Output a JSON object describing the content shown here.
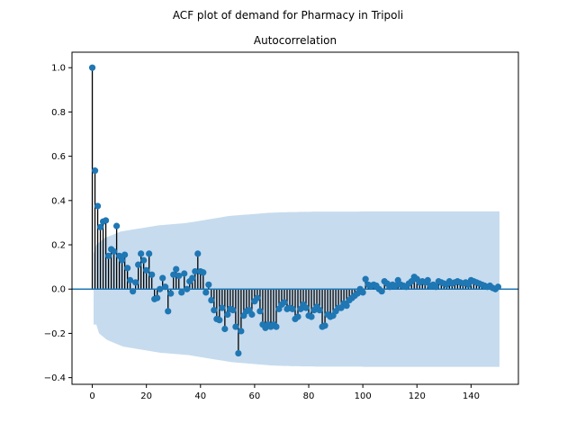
{
  "chart_data": {
    "type": "stem",
    "suptitle": "ACF plot of demand for Pharmacy in Tripoli",
    "title": "Autocorrelation",
    "xlabel": "",
    "ylabel": "",
    "xlim": [
      -7.5,
      157.5
    ],
    "ylim": [
      -0.43,
      1.07
    ],
    "x_ticks": [
      0,
      20,
      40,
      60,
      80,
      100,
      120,
      140
    ],
    "x_tick_labels": [
      "0",
      "20",
      "40",
      "60",
      "80",
      "100",
      "120",
      "140"
    ],
    "y_ticks": [
      -0.4,
      -0.2,
      0.0,
      0.2,
      0.4,
      0.6,
      0.8,
      1.0
    ],
    "y_tick_labels": [
      "−0.4",
      "−0.2",
      "0.0",
      "0.2",
      "0.4",
      "0.6",
      "0.8",
      "1.0"
    ],
    "grid": false,
    "colors": {
      "marker": "#1f77b4",
      "stem": "#000000",
      "band": "#c6dbee",
      "zero_line": "#1f77b4"
    },
    "lags": [
      0,
      1,
      2,
      3,
      4,
      5,
      6,
      7,
      8,
      9,
      10,
      11,
      12,
      13,
      14,
      15,
      16,
      17,
      18,
      19,
      20,
      21,
      22,
      23,
      24,
      25,
      26,
      27,
      28,
      29,
      30,
      31,
      32,
      33,
      34,
      35,
      36,
      37,
      38,
      39,
      40,
      41,
      42,
      43,
      44,
      45,
      46,
      47,
      48,
      49,
      50,
      51,
      52,
      53,
      54,
      55,
      56,
      57,
      58,
      59,
      60,
      61,
      62,
      63,
      64,
      65,
      66,
      67,
      68,
      69,
      70,
      71,
      72,
      73,
      74,
      75,
      76,
      77,
      78,
      79,
      80,
      81,
      82,
      83,
      84,
      85,
      86,
      87,
      88,
      89,
      90,
      91,
      92,
      93,
      94,
      95,
      96,
      97,
      98,
      99,
      100,
      101,
      102,
      103,
      104,
      105,
      106,
      107,
      108,
      109,
      110,
      111,
      112,
      113,
      114,
      115,
      116,
      117,
      118,
      119,
      120,
      121,
      122,
      123,
      124,
      125,
      126,
      127,
      128,
      129,
      130,
      131,
      132,
      133,
      134,
      135,
      136,
      137,
      138,
      139,
      140,
      141,
      142,
      143,
      144,
      145,
      146,
      147,
      148,
      149,
      150
    ],
    "acf": [
      1.0,
      0.535,
      0.375,
      0.28,
      0.305,
      0.31,
      0.15,
      0.18,
      0.17,
      0.285,
      0.15,
      0.13,
      0.155,
      0.095,
      0.04,
      -0.01,
      0.03,
      0.11,
      0.16,
      0.13,
      0.085,
      0.16,
      0.065,
      -0.045,
      -0.04,
      0.0,
      0.05,
      0.01,
      -0.1,
      -0.02,
      0.065,
      0.09,
      0.06,
      -0.015,
      0.07,
      0.0,
      0.035,
      0.05,
      0.08,
      0.16,
      0.08,
      0.075,
      -0.015,
      0.02,
      -0.05,
      -0.095,
      -0.135,
      -0.14,
      -0.085,
      -0.18,
      -0.115,
      -0.09,
      -0.095,
      -0.17,
      -0.29,
      -0.19,
      -0.12,
      -0.1,
      -0.095,
      -0.115,
      -0.055,
      -0.04,
      -0.1,
      -0.16,
      -0.175,
      -0.16,
      -0.17,
      -0.16,
      -0.17,
      -0.09,
      -0.07,
      -0.06,
      -0.09,
      -0.085,
      -0.09,
      -0.135,
      -0.125,
      -0.09,
      -0.07,
      -0.085,
      -0.12,
      -0.125,
      -0.095,
      -0.08,
      -0.095,
      -0.17,
      -0.165,
      -0.115,
      -0.125,
      -0.12,
      -0.1,
      -0.085,
      -0.085,
      -0.065,
      -0.075,
      -0.05,
      -0.04,
      -0.03,
      -0.02,
      0.0,
      -0.015,
      0.045,
      0.02,
      0.015,
      0.02,
      0.015,
      0.0,
      -0.01,
      0.035,
      0.025,
      0.01,
      0.02,
      0.015,
      0.04,
      0.02,
      0.015,
      0.01,
      0.025,
      0.035,
      0.055,
      0.045,
      0.03,
      0.035,
      0.03,
      0.04,
      0.015,
      0.02,
      0.01,
      0.035,
      0.03,
      0.025,
      0.02,
      0.035,
      0.025,
      0.03,
      0.035,
      0.03,
      0.025,
      0.03,
      0.02,
      0.04,
      0.035,
      0.03,
      0.025,
      0.02,
      0.015,
      0.01,
      0.015,
      0.005,
      0.0,
      0.01
    ],
    "confint_half_width": [
      0.0,
      0.16,
      0.2,
      0.21,
      0.22,
      0.23,
      0.235,
      0.24,
      0.245,
      0.25,
      0.255,
      0.26,
      0.262,
      0.264,
      0.266,
      0.268,
      0.27,
      0.272,
      0.274,
      0.276,
      0.278,
      0.28,
      0.282,
      0.284,
      0.286,
      0.288,
      0.289,
      0.29,
      0.291,
      0.292,
      0.293,
      0.294,
      0.295,
      0.296,
      0.297,
      0.298,
      0.3,
      0.302,
      0.304,
      0.306,
      0.308,
      0.31,
      0.312,
      0.314,
      0.316,
      0.318,
      0.32,
      0.322,
      0.324,
      0.326,
      0.328,
      0.33,
      0.331,
      0.332,
      0.333,
      0.334,
      0.335,
      0.336,
      0.337,
      0.338,
      0.339,
      0.34,
      0.341,
      0.342,
      0.343,
      0.344,
      0.345,
      0.345,
      0.346,
      0.346,
      0.347,
      0.347,
      0.347,
      0.348,
      0.348,
      0.348,
      0.348,
      0.349,
      0.349,
      0.349,
      0.349,
      0.349,
      0.35,
      0.35,
      0.35,
      0.35,
      0.35,
      0.35,
      0.35,
      0.35,
      0.35,
      0.35,
      0.35,
      0.35,
      0.35,
      0.35,
      0.35,
      0.35,
      0.35,
      0.35,
      0.351,
      0.351,
      0.351,
      0.351,
      0.351,
      0.351,
      0.351,
      0.351,
      0.351,
      0.351,
      0.351,
      0.351,
      0.351,
      0.351,
      0.351,
      0.351,
      0.351,
      0.351,
      0.351,
      0.351,
      0.351,
      0.351,
      0.351,
      0.351,
      0.351,
      0.351,
      0.351,
      0.351,
      0.351,
      0.351,
      0.351,
      0.351,
      0.351,
      0.351,
      0.351,
      0.351,
      0.351,
      0.351,
      0.351,
      0.351,
      0.351,
      0.351,
      0.351,
      0.351,
      0.351,
      0.351,
      0.351,
      0.351,
      0.351,
      0.351,
      0.351
    ]
  }
}
